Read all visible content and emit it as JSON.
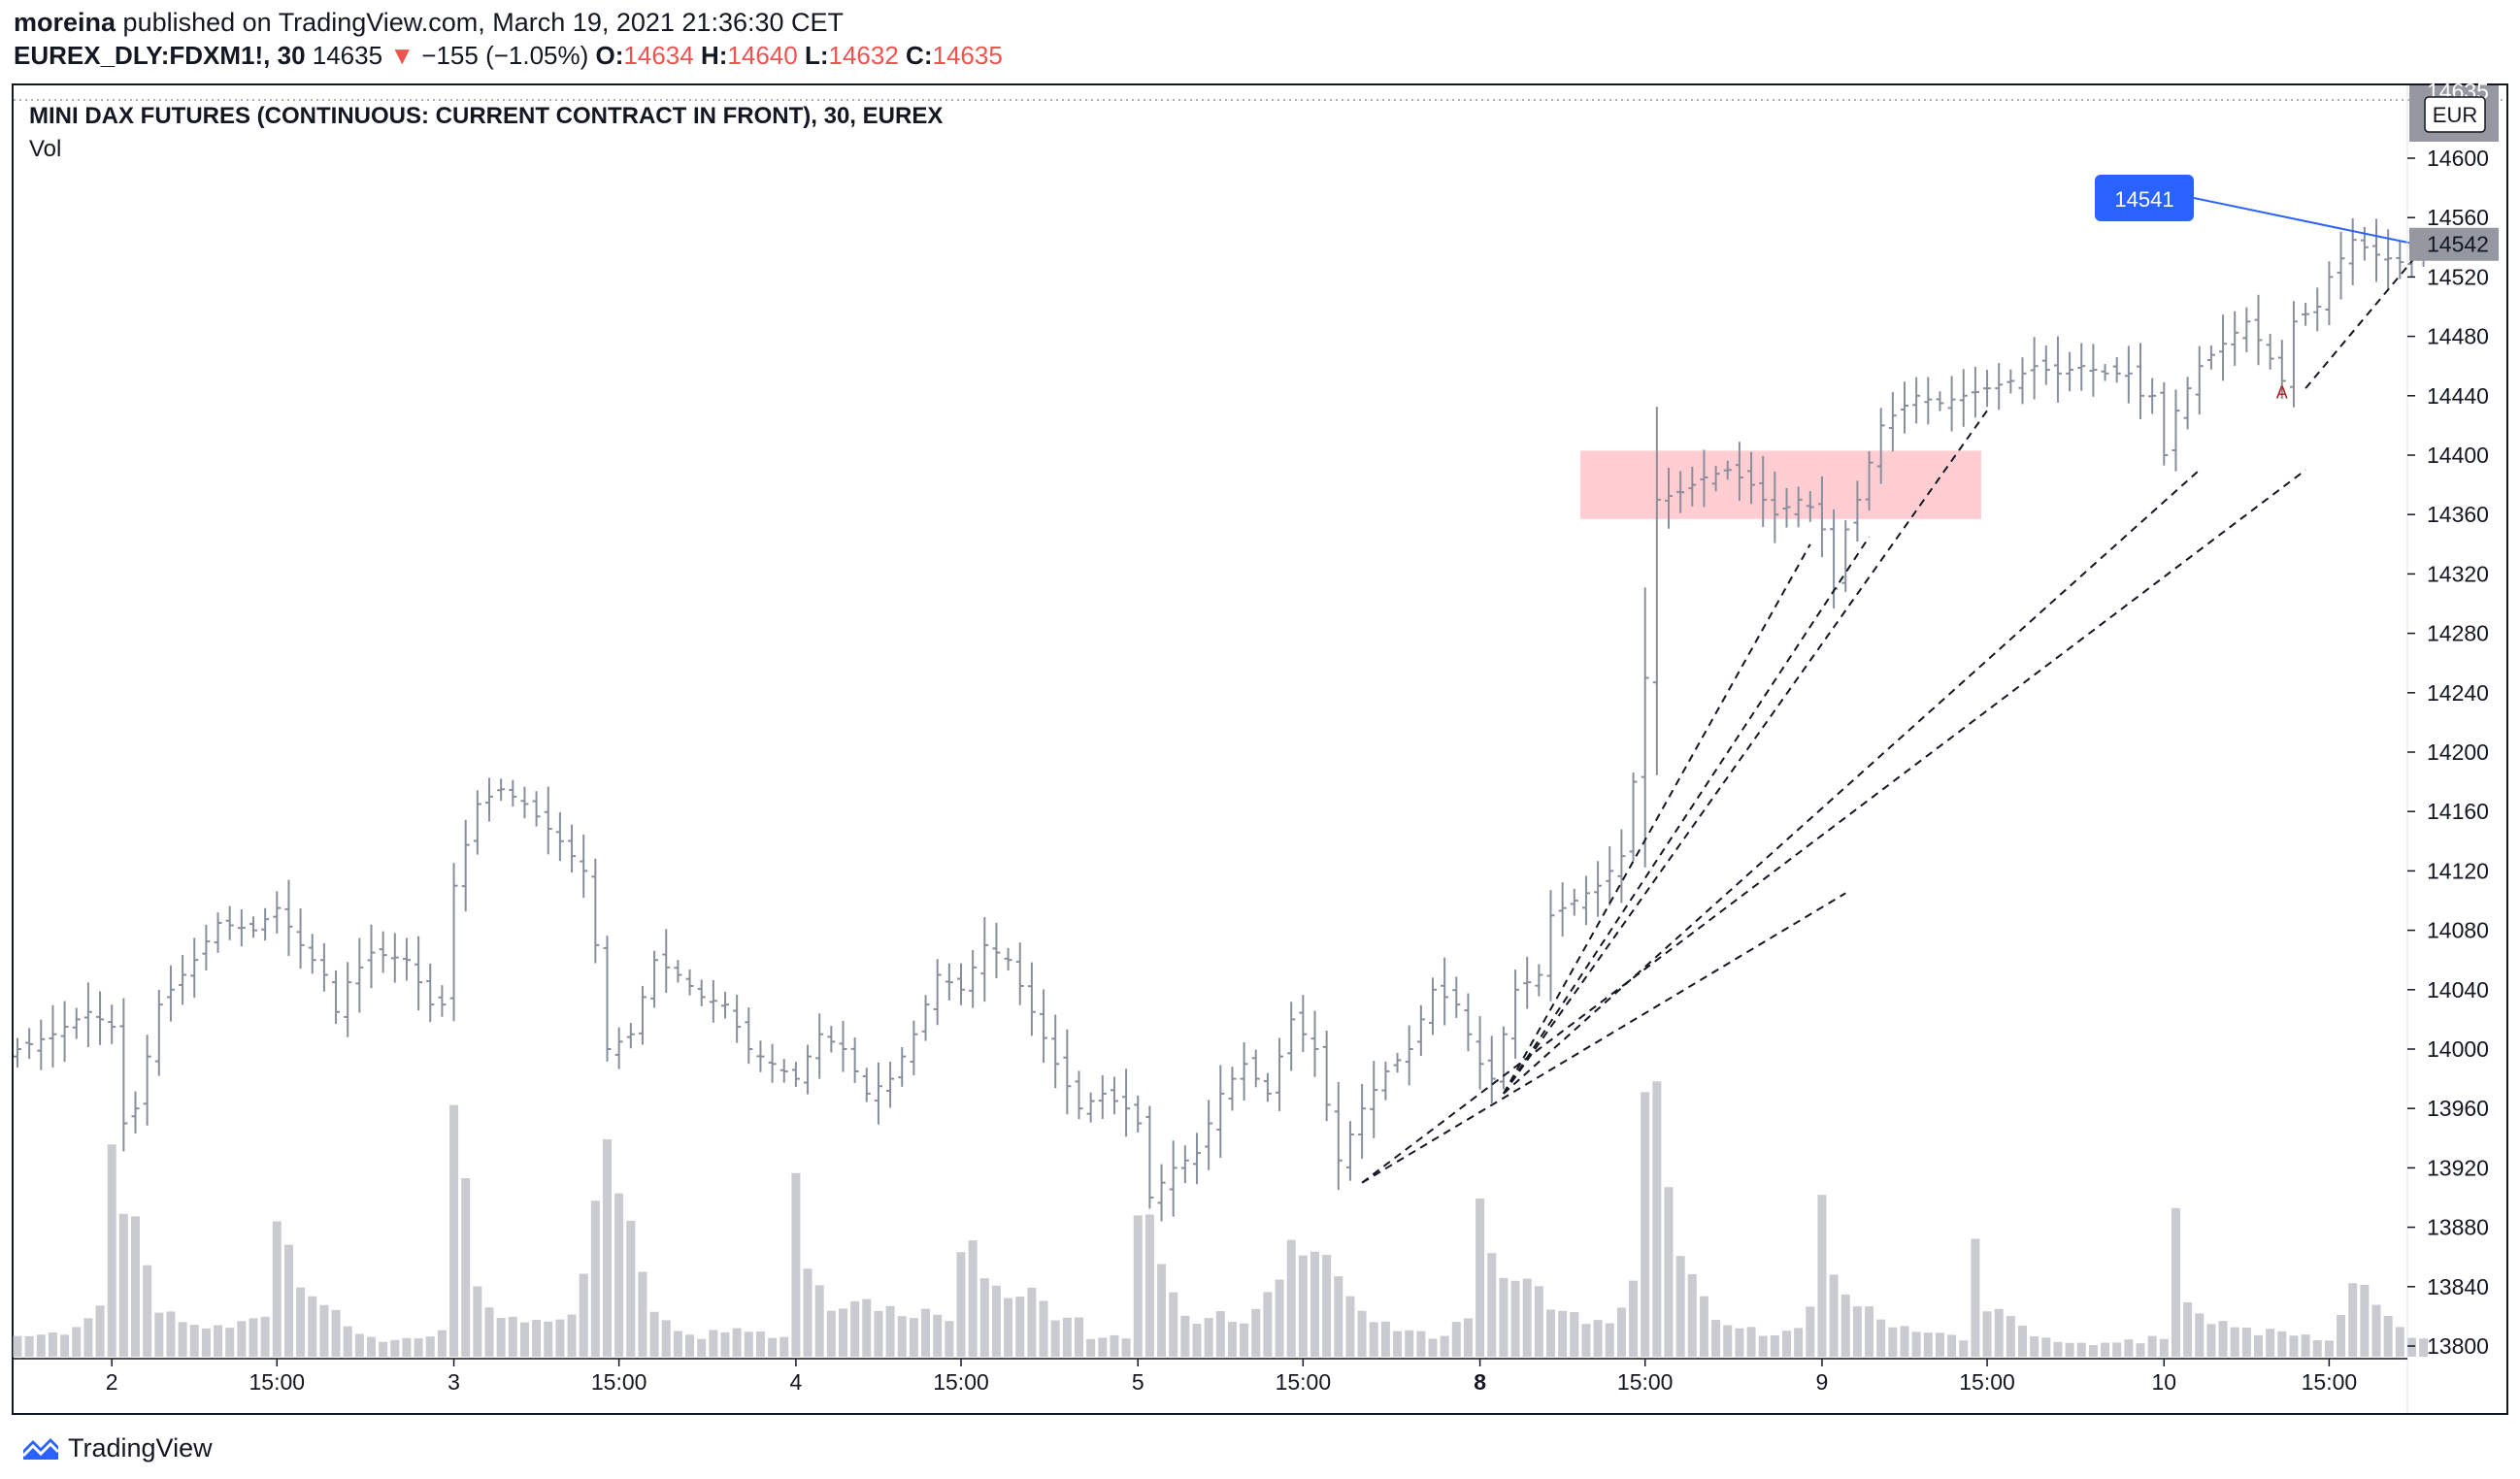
{
  "header": {
    "author": "moreina",
    "published_text": " published on TradingView.com, March 19, 2021 21:36:30 CET",
    "symbol": "EUREX_DLY:FDXM1!, 30",
    "last": "14635",
    "change_arrow": "▼",
    "change": "−155 (−1.05%)",
    "o_label": "O:",
    "o_value": "14634",
    "h_label": "H:",
    "h_value": "14640",
    "l_label": "L:",
    "l_value": "14632",
    "c_label": "C:",
    "c_value": "14635"
  },
  "chart_title": "MINI DAX FUTURES (CONTINUOUS: CURRENT CONTRACT IN FRONT), 30, EUREX",
  "volume_label": "Vol",
  "footer": {
    "brand": "TradingView"
  },
  "colors": {
    "bar": "#888f9c",
    "volume": "#c9cbd1",
    "zone": "#ffcdd2",
    "accent_blue": "#2962ff",
    "price_tag_gray": "#9598a1",
    "down_red": "#ef5350"
  },
  "chart_data": {
    "type": "ohlc",
    "currency": "EUR",
    "y_axis": {
      "min": 13780,
      "max": 14620,
      "ticks": [
        13800,
        13840,
        13880,
        13920,
        13960,
        14000,
        14040,
        14080,
        14120,
        14160,
        14200,
        14240,
        14280,
        14320,
        14360,
        14400,
        14440,
        14480,
        14520,
        14560,
        14600
      ]
    },
    "x_ticks": [
      {
        "label": "2",
        "bar": 8,
        "bold": false
      },
      {
        "label": "15:00",
        "bar": 22,
        "bold": false
      },
      {
        "label": "3",
        "bar": 37,
        "bold": false
      },
      {
        "label": "15:00",
        "bar": 51,
        "bold": false
      },
      {
        "label": "4",
        "bar": 66,
        "bold": false
      },
      {
        "label": "15:00",
        "bar": 80,
        "bold": false
      },
      {
        "label": "5",
        "bar": 95,
        "bold": false
      },
      {
        "label": "15:00",
        "bar": 109,
        "bold": false
      },
      {
        "label": "8",
        "bar": 124,
        "bold": true
      },
      {
        "label": "15:00",
        "bar": 138,
        "bold": false
      },
      {
        "label": "9",
        "bar": 153,
        "bold": false
      },
      {
        "label": "15:00",
        "bar": 167,
        "bold": false
      },
      {
        "label": "10",
        "bar": 182,
        "bold": false
      },
      {
        "label": "15:00",
        "bar": 196,
        "bold": false
      }
    ],
    "bar_count": 205,
    "close_waypoints": [
      [
        0,
        14000
      ],
      [
        3,
        14010
      ],
      [
        6,
        14025
      ],
      [
        8,
        14015
      ],
      [
        9,
        13950
      ],
      [
        10,
        13960
      ],
      [
        12,
        14030
      ],
      [
        15,
        14060
      ],
      [
        17,
        14085
      ],
      [
        20,
        14080
      ],
      [
        22,
        14095
      ],
      [
        24,
        14070
      ],
      [
        26,
        14050
      ],
      [
        27,
        14025
      ],
      [
        28,
        14045
      ],
      [
        30,
        14065
      ],
      [
        33,
        14060
      ],
      [
        35,
        14030
      ],
      [
        36,
        14030
      ],
      [
        37,
        14110
      ],
      [
        39,
        14165
      ],
      [
        41,
        14175
      ],
      [
        43,
        14165
      ],
      [
        46,
        14140
      ],
      [
        48,
        14120
      ],
      [
        49,
        14070
      ],
      [
        50,
        14000
      ],
      [
        52,
        14010
      ],
      [
        54,
        14060
      ],
      [
        56,
        14050
      ],
      [
        58,
        14035
      ],
      [
        60,
        14030
      ],
      [
        62,
        14000
      ],
      [
        64,
        13990
      ],
      [
        66,
        13980
      ],
      [
        68,
        14010
      ],
      [
        70,
        14000
      ],
      [
        72,
        13970
      ],
      [
        74,
        13980
      ],
      [
        76,
        14010
      ],
      [
        78,
        14050
      ],
      [
        80,
        14040
      ],
      [
        82,
        14070
      ],
      [
        84,
        14060
      ],
      [
        86,
        14025
      ],
      [
        88,
        13990
      ],
      [
        90,
        13960
      ],
      [
        92,
        13970
      ],
      [
        94,
        13960
      ],
      [
        95,
        13950
      ],
      [
        96,
        13900
      ],
      [
        98,
        13920
      ],
      [
        100,
        13930
      ],
      [
        102,
        13970
      ],
      [
        104,
        13990
      ],
      [
        106,
        13970
      ],
      [
        108,
        14020
      ],
      [
        110,
        14000
      ],
      [
        112,
        13925
      ],
      [
        114,
        13960
      ],
      [
        116,
        13985
      ],
      [
        118,
        14000
      ],
      [
        120,
        14040
      ],
      [
        122,
        14030
      ],
      [
        124,
        13990
      ],
      [
        125,
        13980
      ],
      [
        127,
        14040
      ],
      [
        129,
        14050
      ],
      [
        130,
        14090
      ],
      [
        132,
        14100
      ],
      [
        134,
        14110
      ],
      [
        136,
        14130
      ],
      [
        137,
        14180
      ],
      [
        138,
        14250
      ],
      [
        139,
        14370
      ],
      [
        141,
        14375
      ],
      [
        143,
        14385
      ],
      [
        145,
        14390
      ],
      [
        147,
        14380
      ],
      [
        149,
        14360
      ],
      [
        151,
        14370
      ],
      [
        152,
        14365
      ],
      [
        153,
        14350
      ],
      [
        154,
        14310
      ],
      [
        155,
        14350
      ],
      [
        156,
        14370
      ],
      [
        158,
        14420
      ],
      [
        161,
        14440
      ],
      [
        163,
        14435
      ],
      [
        165,
        14440
      ],
      [
        167,
        14445
      ],
      [
        169,
        14450
      ],
      [
        171,
        14460
      ],
      [
        173,
        14455
      ],
      [
        175,
        14460
      ],
      [
        177,
        14455
      ],
      [
        179,
        14455
      ],
      [
        180,
        14440
      ],
      [
        181,
        14440
      ],
      [
        182,
        14400
      ],
      [
        183,
        14430
      ],
      [
        185,
        14460
      ],
      [
        187,
        14475
      ],
      [
        189,
        14490
      ],
      [
        191,
        14465
      ],
      [
        192,
        14450
      ],
      [
        193,
        14490
      ],
      [
        195,
        14500
      ],
      [
        196,
        14520
      ],
      [
        198,
        14545
      ],
      [
        200,
        14535
      ],
      [
        202,
        14530
      ],
      [
        204,
        14535
      ]
    ],
    "volume_pattern": [
      [
        0,
        10
      ],
      [
        4,
        12
      ],
      [
        7,
        22
      ],
      [
        8,
        95
      ],
      [
        10,
        60
      ],
      [
        12,
        22
      ],
      [
        15,
        15
      ],
      [
        18,
        14
      ],
      [
        21,
        22
      ],
      [
        22,
        70
      ],
      [
        24,
        40
      ],
      [
        26,
        26
      ],
      [
        28,
        14
      ],
      [
        31,
        8
      ],
      [
        34,
        8
      ],
      [
        36,
        12
      ],
      [
        37,
        120
      ],
      [
        39,
        35
      ],
      [
        41,
        18
      ],
      [
        44,
        18
      ],
      [
        47,
        22
      ],
      [
        49,
        70
      ],
      [
        50,
        105
      ],
      [
        52,
        60
      ],
      [
        54,
        24
      ],
      [
        56,
        14
      ],
      [
        58,
        10
      ],
      [
        61,
        16
      ],
      [
        63,
        12
      ],
      [
        64,
        10
      ],
      [
        65,
        10
      ],
      [
        66,
        95
      ],
      [
        67,
        45
      ],
      [
        69,
        25
      ],
      [
        71,
        30
      ],
      [
        73,
        25
      ],
      [
        75,
        22
      ],
      [
        77,
        22
      ],
      [
        79,
        20
      ],
      [
        80,
        55
      ],
      [
        81,
        65
      ],
      [
        82,
        40
      ],
      [
        84,
        30
      ],
      [
        86,
        30
      ],
      [
        88,
        20
      ],
      [
        90,
        18
      ],
      [
        91,
        8
      ],
      [
        94,
        10
      ],
      [
        95,
        80
      ],
      [
        96,
        70
      ],
      [
        98,
        28
      ],
      [
        100,
        18
      ],
      [
        102,
        20
      ],
      [
        104,
        16
      ],
      [
        106,
        28
      ],
      [
        108,
        55
      ],
      [
        110,
        60
      ],
      [
        112,
        40
      ],
      [
        114,
        20
      ],
      [
        116,
        15
      ],
      [
        118,
        12
      ],
      [
        120,
        10
      ],
      [
        121,
        12
      ],
      [
        123,
        20
      ],
      [
        124,
        85
      ],
      [
        125,
        45
      ],
      [
        127,
        38
      ],
      [
        129,
        32
      ],
      [
        131,
        22
      ],
      [
        133,
        18
      ],
      [
        135,
        15
      ],
      [
        137,
        38
      ],
      [
        138,
        120
      ],
      [
        139,
        125
      ],
      [
        140,
        75
      ],
      [
        142,
        38
      ],
      [
        144,
        16
      ],
      [
        146,
        14
      ],
      [
        148,
        12
      ],
      [
        150,
        12
      ],
      [
        151,
        14
      ],
      [
        152,
        22
      ],
      [
        153,
        70
      ],
      [
        154,
        40
      ],
      [
        156,
        26
      ],
      [
        158,
        18
      ],
      [
        160,
        15
      ],
      [
        162,
        12
      ],
      [
        164,
        10
      ],
      [
        165,
        8
      ],
      [
        166,
        55
      ],
      [
        167,
        26
      ],
      [
        169,
        18
      ],
      [
        171,
        10
      ],
      [
        173,
        8
      ],
      [
        175,
        6
      ],
      [
        177,
        6
      ],
      [
        179,
        8
      ],
      [
        180,
        6
      ],
      [
        181,
        12
      ],
      [
        182,
        10
      ],
      [
        183,
        65
      ],
      [
        184,
        25
      ],
      [
        186,
        18
      ],
      [
        188,
        16
      ],
      [
        190,
        12
      ],
      [
        192,
        12
      ],
      [
        194,
        10
      ],
      [
        196,
        8
      ],
      [
        197,
        20
      ],
      [
        198,
        40
      ],
      [
        199,
        35
      ],
      [
        201,
        18
      ],
      [
        203,
        10
      ],
      [
        204,
        8
      ]
    ],
    "drawings": {
      "resistance_zone": {
        "bar_from": 133,
        "bar_to": 166,
        "price_from": 14357,
        "price_to": 14403
      },
      "trend_lines_dashed": [
        {
          "from": [
            114,
            13910
          ],
          "to": [
            155,
            14105
          ]
        },
        {
          "from": [
            126,
            13970
          ],
          "to": [
            152,
            14340
          ]
        },
        {
          "from": [
            126,
            13970
          ],
          "to": [
            157,
            14345
          ]
        },
        {
          "from": [
            126,
            13970
          ],
          "to": [
            167,
            14430
          ]
        },
        {
          "from": [
            126,
            13970
          ],
          "to": [
            185,
            14390
          ]
        },
        {
          "from": [
            114,
            13910
          ],
          "to": [
            194,
            14390
          ]
        },
        {
          "from": [
            194,
            14445
          ],
          "to": [
            204,
            14540
          ]
        }
      ],
      "alert_label": {
        "text": "14541",
        "anchor": [
          204,
          14541
        ]
      },
      "marker": {
        "text": "A",
        "bar": 192,
        "price": 14442
      }
    },
    "price_axis_labels": {
      "current": "14542",
      "top_clipped": "14635",
      "currency_button": "EUR"
    }
  }
}
